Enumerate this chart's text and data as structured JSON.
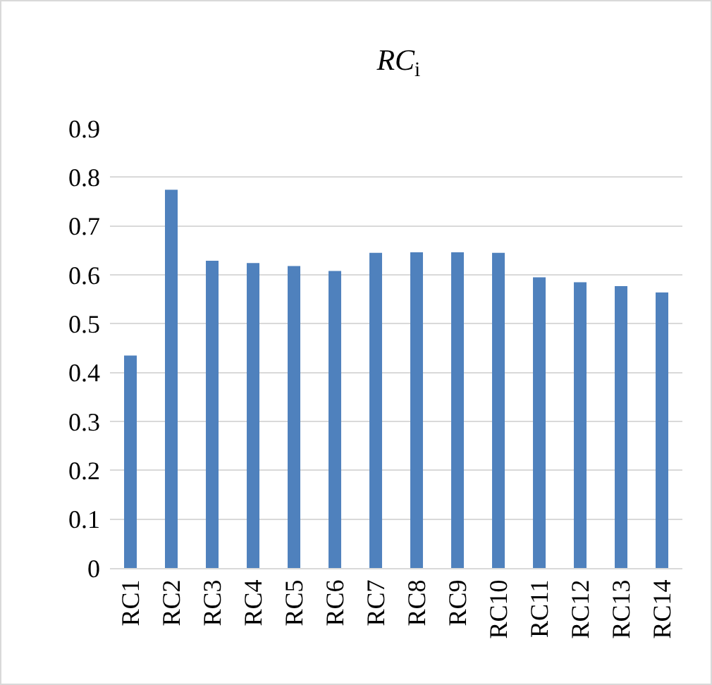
{
  "chart_data": {
    "type": "bar",
    "title": "RC$_{i}$",
    "categories": [
      "RC1",
      "RC2",
      "RC3",
      "RC4",
      "RC5",
      "RC6",
      "RC7",
      "RC8",
      "RC9",
      "RC10",
      "RC11",
      "RC12",
      "RC13",
      "RC14"
    ],
    "values": [
      0.435,
      0.774,
      0.629,
      0.624,
      0.618,
      0.608,
      0.645,
      0.646,
      0.646,
      0.645,
      0.595,
      0.585,
      0.577,
      0.564
    ],
    "color": "#4f81bd",
    "ylim": [
      0,
      0.9
    ],
    "yticks": [
      0,
      0.1,
      0.2,
      0.3,
      0.4,
      0.5,
      0.6,
      0.7,
      0.8,
      0.9
    ],
    "grid": "y",
    "legend": false
  }
}
